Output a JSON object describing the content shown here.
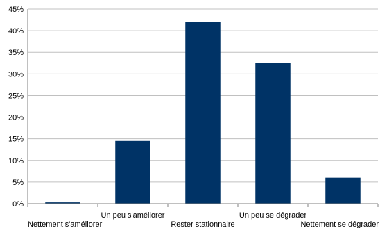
{
  "chart_data": {
    "type": "bar",
    "title": "",
    "xlabel": "",
    "ylabel": "",
    "categories": [
      "Nettement s'améliorer",
      "Un peu s'améliorer",
      "Rester stationnaire",
      "Un peu se dégrader",
      "Nettement se dégrader"
    ],
    "values": [
      0.3,
      14.5,
      42.1,
      32.5,
      6.0
    ],
    "value_unit": "%",
    "ylim": [
      0,
      45
    ],
    "yticks": [
      "0%",
      "5%",
      "10%",
      "15%",
      "20%",
      "25%",
      "30%",
      "35%",
      "40%",
      "45%"
    ],
    "grid": true,
    "legend": "none",
    "colors": {
      "bar": "#003366",
      "grid": "#c0c0c0",
      "axis": "#808080"
    }
  }
}
